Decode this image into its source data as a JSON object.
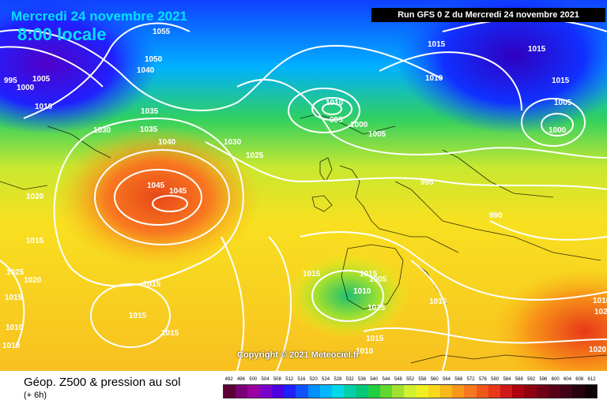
{
  "header": {
    "date_title": "Mercredi 24 novembre 2021",
    "local_time": "8:00 locale",
    "run_info": "Run GFS 0 Z du Mercredi 24 novembre 2021"
  },
  "map": {
    "copyright": "Copyright © 2021 Meteociel.fr",
    "pressure_labels": [
      "1055",
      "1050",
      "1040",
      "995",
      "1005",
      "1000",
      "1010",
      "1035",
      "1030",
      "1035",
      "1040",
      "1030",
      "1025",
      "1045",
      "1045",
      "1015",
      "1010",
      "1015",
      "1010",
      "1000",
      "995",
      "1005",
      "1015",
      "1005",
      "1000",
      "995",
      "990",
      "1020",
      "1025",
      "1020",
      "1015",
      "1015",
      "1015",
      "1010",
      "1015",
      "1015",
      "1005",
      "1010",
      "1015",
      "1015",
      "1015",
      "1010",
      "1010",
      "1020",
      "1015",
      "1015",
      "1020",
      "1010"
    ]
  },
  "footer": {
    "title": "Géop. Z500 & pression au sol",
    "subtitle": "(+ 6h)"
  },
  "legend": {
    "labels": [
      "492",
      "496",
      "500",
      "504",
      "508",
      "512",
      "516",
      "520",
      "524",
      "528",
      "532",
      "536",
      "540",
      "544",
      "548",
      "552",
      "556",
      "560",
      "564",
      "568",
      "572",
      "576",
      "580",
      "584",
      "588",
      "592",
      "596",
      "600",
      "604",
      "608",
      "612"
    ],
    "colors": [
      "#5c0035",
      "#7a0078",
      "#9a00a0",
      "#7a00c8",
      "#5000e0",
      "#2020ff",
      "#1050ff",
      "#0090ff",
      "#00b8ff",
      "#00d8e8",
      "#00d0a8",
      "#00c878",
      "#20d040",
      "#60d830",
      "#a0e030",
      "#d0f030",
      "#f0f020",
      "#f8d818",
      "#f8b818",
      "#f89818",
      "#f87820",
      "#f05818",
      "#e83818",
      "#d01818",
      "#b00010",
      "#900010",
      "#700018",
      "#580018",
      "#400018",
      "#280010",
      "#100008"
    ]
  }
}
